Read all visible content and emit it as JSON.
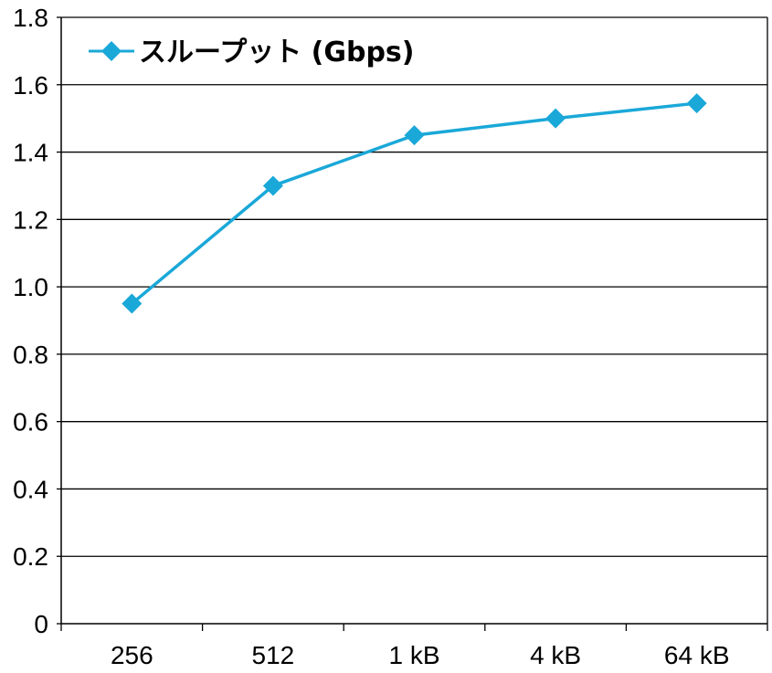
{
  "chart_data": {
    "type": "line",
    "categories": [
      "256",
      "512",
      "1 kB",
      "4 kB",
      "64 kB"
    ],
    "series": [
      {
        "name": "スループット (Gbps)",
        "values": [
          0.95,
          1.3,
          1.45,
          1.5,
          1.545
        ],
        "color": "#1aa8d8",
        "marker": "diamond"
      }
    ],
    "title": "",
    "xlabel": "",
    "ylabel": "",
    "ylim": [
      0,
      1.8
    ],
    "yticks": [
      "0",
      "0.2",
      "0.4",
      "0.6",
      "0.8",
      "1.0",
      "1.2",
      "1.4",
      "1.6",
      "1.8"
    ],
    "grid": "horizontal",
    "legend": "top-left"
  }
}
